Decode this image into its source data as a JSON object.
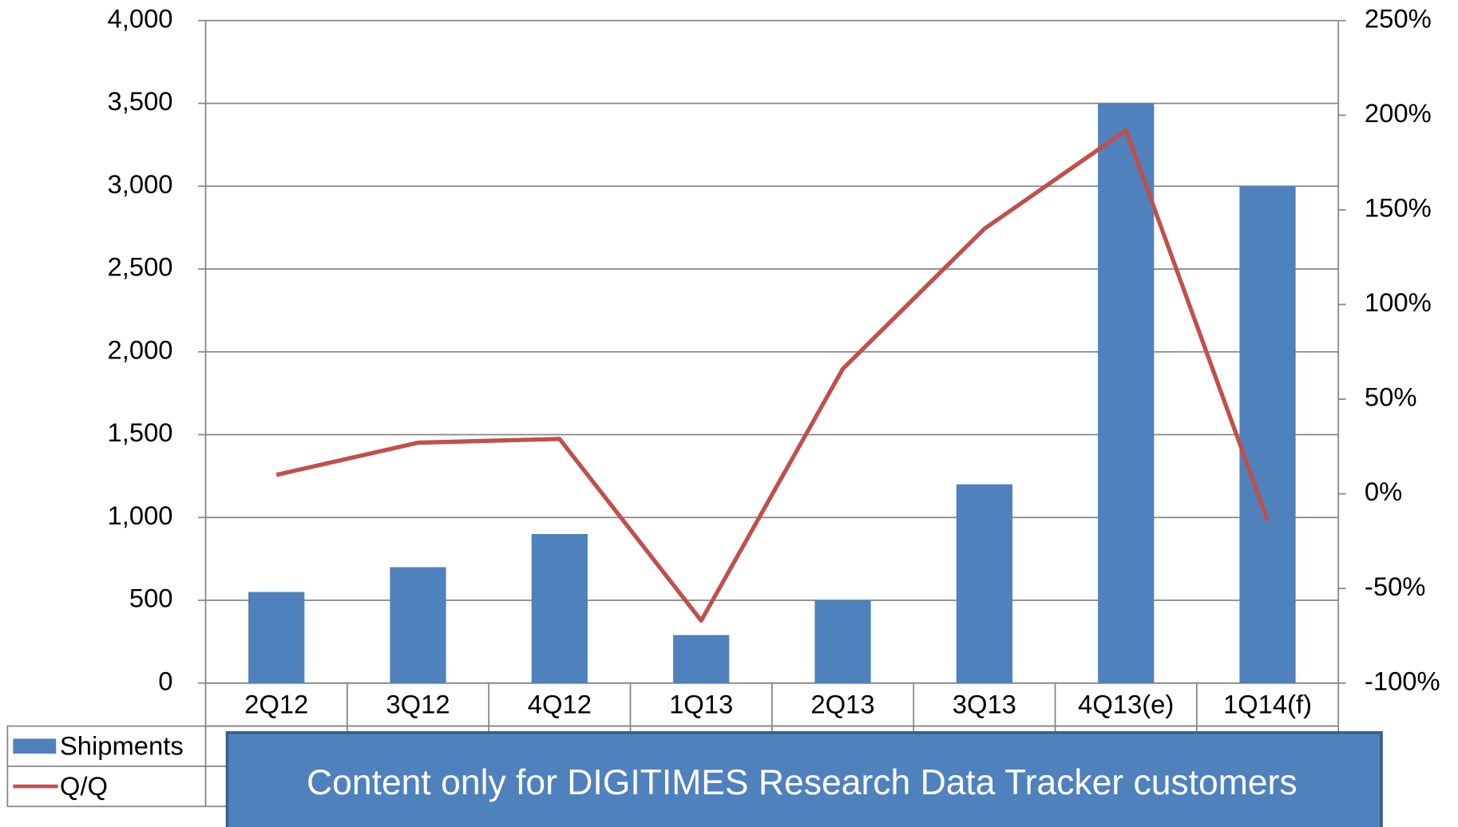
{
  "chart_data": {
    "type": "bar",
    "categories": [
      "2Q12",
      "3Q12",
      "4Q12",
      "1Q13",
      "2Q13",
      "3Q13",
      "4Q13(e)",
      "1Q14(f)"
    ],
    "series": [
      {
        "name": "Shipments",
        "color": "#4f81bd",
        "values": [
          550,
          700,
          900,
          290,
          500,
          1200,
          3500,
          3000
        ]
      },
      {
        "name": "Q/Q",
        "color": "#c0504d",
        "axis": "y2",
        "type": "line",
        "values": [
          10,
          27,
          29,
          -67,
          66,
          140,
          192,
          -14
        ]
      }
    ],
    "ylim": [
      0,
      4000
    ],
    "yticks": [
      0,
      500,
      {
        "value": 1000,
        "label": "1,000"
      },
      {
        "value": 1500,
        "label": "1,500"
      },
      {
        "value": 2000,
        "label": "2,000"
      },
      {
        "value": 2500,
        "label": "2,500"
      },
      {
        "value": 3000,
        "label": "3,000"
      },
      {
        "value": 3500,
        "label": "3,500"
      },
      {
        "value": 4000,
        "label": "4,000"
      }
    ],
    "y2lim": [
      -100,
      250
    ],
    "y2ticks": [
      {
        "value": -100,
        "label": "-100%"
      },
      {
        "value": -50,
        "label": "-50%"
      },
      {
        "value": 0,
        "label": "0%"
      },
      {
        "value": 50,
        "label": "50%"
      },
      {
        "value": 100,
        "label": "100%"
      },
      {
        "value": 150,
        "label": "150%"
      },
      {
        "value": 200,
        "label": "200%"
      },
      {
        "value": 250,
        "label": "250%"
      }
    ],
    "grid": true,
    "annotation": "Content only for DIGITIMES Research Data Tracker customers"
  }
}
